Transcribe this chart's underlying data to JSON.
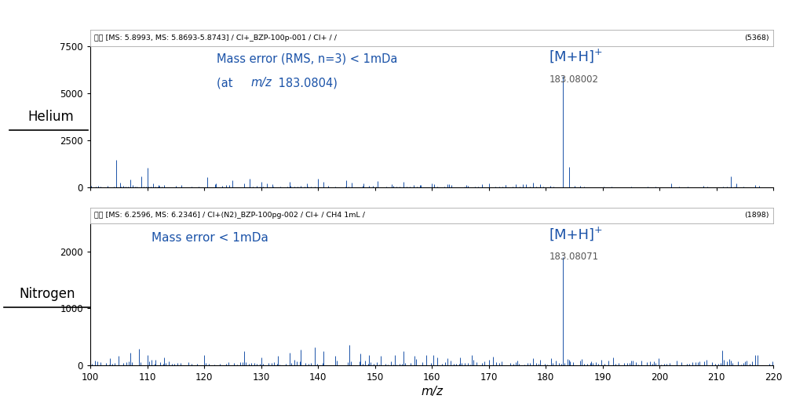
{
  "fig_width": 10.0,
  "fig_height": 5.09,
  "dpi": 100,
  "bg_color": "#ffffff",
  "plot_color": "#1a52a8",
  "header1": "消量 [MS: 5.8993, MS: 5.8693-5.8743] / Cl+_BZP-100p-001 / Cl+ / /",
  "header1_right": "(5368)",
  "header2": "消量 [MS: 6.2596, MS: 6.2346] / Cl+(N2)_BZP-100pg-002 / Cl+ / CH4 1mL /",
  "header2_right": "(1898)",
  "label1_left": "Helium",
  "label2_left": "Nitrogen",
  "annotation1_mz": "183.08002",
  "annotation2_mz": "183.08071",
  "xlabel": "m/z",
  "xmin": 100,
  "xmax": 220,
  "xticks": [
    100,
    110,
    120,
    130,
    140,
    150,
    160,
    170,
    180,
    190,
    200,
    210,
    220
  ],
  "ymax1": 7500,
  "ymax2": 2500,
  "yticks1": [
    0,
    2500,
    5000,
    7500
  ],
  "yticks2": [
    0,
    1000,
    2000
  ]
}
